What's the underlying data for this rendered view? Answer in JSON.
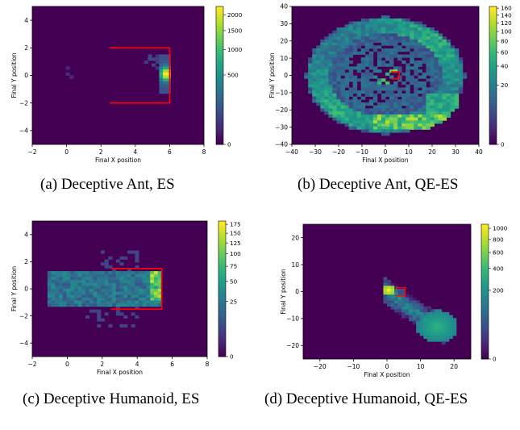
{
  "colormap": {
    "low": "#440154",
    "mid": "#21918c",
    "high": "#fde725",
    "frame": "#ff0000"
  },
  "chart_data": [
    {
      "type": "heatmap",
      "caption": "(a) Deceptive Ant, ES",
      "xlabel": "Final X position",
      "ylabel": "Final Y position",
      "xlim": [
        -2,
        8
      ],
      "ylim": [
        -5,
        5
      ],
      "xticks": [
        -2,
        0,
        2,
        4,
        6,
        8
      ],
      "yticks": [
        -4,
        -2,
        0,
        2,
        4
      ],
      "colorbar_ticks": [
        0,
        500,
        1000,
        1500,
        2000
      ],
      "colorbar_max": 2300,
      "maze_frame": [
        [
          2.5,
          2
        ],
        [
          6,
          2
        ],
        [
          6,
          -2
        ],
        [
          2.5,
          -2
        ]
      ]
    },
    {
      "type": "heatmap",
      "caption": "(b) Deceptive Ant, QE-ES",
      "xlabel": "Final X position",
      "ylabel": "Final Y position",
      "xlim": [
        -40,
        40
      ],
      "ylim": [
        -40,
        40
      ],
      "xticks": [
        -40,
        -30,
        -20,
        -10,
        0,
        10,
        20,
        30,
        40
      ],
      "yticks": [
        -40,
        -30,
        -20,
        -10,
        0,
        10,
        20,
        30,
        40
      ],
      "colorbar_ticks": [
        0,
        20,
        40,
        60,
        80,
        100,
        120,
        140,
        160
      ],
      "colorbar_max": 165,
      "maze_frame": [
        [
          2.5,
          2
        ],
        [
          6,
          2
        ],
        [
          6,
          -2
        ],
        [
          2.5,
          -2
        ]
      ]
    },
    {
      "type": "heatmap",
      "caption": "(c) Deceptive Humanoid, ES",
      "xlabel": "Final X position",
      "ylabel": "Final Y position",
      "xlim": [
        -2,
        8
      ],
      "ylim": [
        -5,
        5
      ],
      "xticks": [
        -2,
        0,
        2,
        4,
        6,
        8
      ],
      "yticks": [
        -4,
        -2,
        0,
        2,
        4
      ],
      "colorbar_ticks": [
        0,
        25,
        50,
        75,
        100,
        125,
        150,
        175
      ],
      "colorbar_max": 185,
      "maze_frame": [
        [
          2.5,
          1.5
        ],
        [
          5.4,
          1.5
        ],
        [
          5.4,
          -1.5
        ],
        [
          2.5,
          -1.5
        ]
      ]
    },
    {
      "type": "heatmap",
      "caption": "(d) Deceptive Humanoid, QE-ES",
      "xlabel": "Final X position",
      "ylabel": "Final Y position",
      "xlim": [
        -25,
        25
      ],
      "ylim": [
        -25,
        25
      ],
      "xticks": [
        -20,
        -10,
        0,
        10,
        20
      ],
      "yticks": [
        -20,
        -10,
        0,
        10,
        20
      ],
      "colorbar_ticks": [
        0,
        200,
        400,
        600,
        800,
        1000
      ],
      "colorbar_max": 1080,
      "maze_frame": [
        [
          2.5,
          1.5
        ],
        [
          5.4,
          1.5
        ],
        [
          5.4,
          -1.5
        ],
        [
          2.5,
          -1.5
        ]
      ]
    }
  ]
}
